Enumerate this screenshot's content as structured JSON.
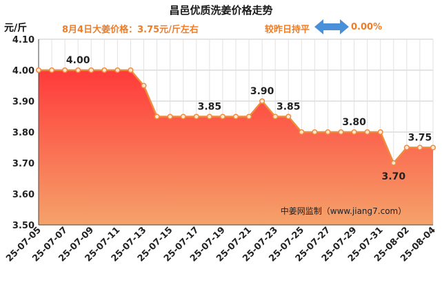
{
  "title": "昌邑优质洗姜价格走势",
  "subtitle": "8月4日大姜价格：3.75元/斤左右",
  "compare_label": "较昨日持平",
  "change_value": "0.00%",
  "watermark": "中姜网监制（www.jiang7.com）",
  "colors": {
    "line": "#f08a3c",
    "marker_fill": "#fde9d3",
    "area_top": "#ff3a3a",
    "area_bottom": "#f5a26a",
    "arrow": "#4a90d9",
    "accent_text": "#f07c25"
  },
  "chart_data": {
    "type": "area",
    "ylabel": "元/斤",
    "ylim": [
      3.5,
      4.1
    ],
    "yticks": [
      "3.50",
      "3.60",
      "3.70",
      "3.80",
      "3.90",
      "4.00",
      "4.10"
    ],
    "grid": true,
    "x": [
      "25-07-05",
      "25-07-06",
      "25-07-07",
      "25-07-08",
      "25-07-09",
      "25-07-10",
      "25-07-11",
      "25-07-12",
      "25-07-13",
      "25-07-14",
      "25-07-15",
      "25-07-16",
      "25-07-17",
      "25-07-18",
      "25-07-19",
      "25-07-20",
      "25-07-21",
      "25-07-22",
      "25-07-23",
      "25-07-24",
      "25-07-25",
      "25-07-26",
      "25-07-27",
      "25-07-28",
      "25-07-29",
      "25-07-30",
      "25-07-31",
      "25-08-01",
      "25-08-02",
      "25-08-03",
      "25-08-04"
    ],
    "xtick_labels": [
      "25-07-05",
      "25-07-07",
      "25-07-09",
      "25-07-11",
      "25-07-13",
      "25-07-15",
      "25-07-17",
      "25-07-19",
      "25-07-21",
      "25-07-23",
      "25-07-25",
      "25-07-27",
      "25-07-29",
      "25-07-31",
      "25-08-02",
      "25-08-04"
    ],
    "values": [
      4.0,
      4.0,
      4.0,
      4.0,
      4.0,
      4.0,
      4.0,
      4.0,
      3.95,
      3.85,
      3.85,
      3.85,
      3.85,
      3.85,
      3.85,
      3.85,
      3.85,
      3.9,
      3.85,
      3.85,
      3.8,
      3.8,
      3.8,
      3.8,
      3.8,
      3.8,
      3.8,
      3.7,
      3.75,
      3.75,
      3.75
    ],
    "data_labels": [
      {
        "index": 3,
        "text": "4.00",
        "pos": "above"
      },
      {
        "index": 13,
        "text": "3.85",
        "pos": "above"
      },
      {
        "index": 17,
        "text": "3.90",
        "pos": "above"
      },
      {
        "index": 19,
        "text": "3.85",
        "pos": "above"
      },
      {
        "index": 24,
        "text": "3.80",
        "pos": "above"
      },
      {
        "index": 27,
        "text": "3.70",
        "pos": "below"
      },
      {
        "index": 29,
        "text": "3.75",
        "pos": "above"
      }
    ]
  }
}
